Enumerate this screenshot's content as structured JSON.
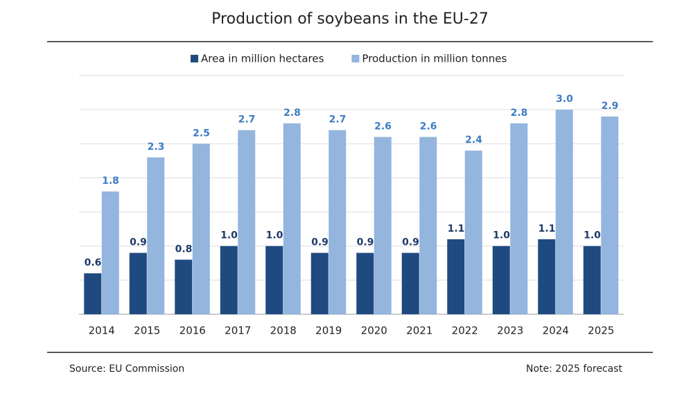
{
  "chart_data": {
    "type": "bar",
    "title": "Production of soybeans in the EU-27",
    "categories": [
      "2014",
      "2015",
      "2016",
      "2017",
      "2018",
      "2019",
      "2020",
      "2021",
      "2022",
      "2023",
      "2024",
      "2025"
    ],
    "series": [
      {
        "name": "Area in million hectares",
        "color": "#1f4a80",
        "label_color": "#1f3a68",
        "values": [
          0.6,
          0.9,
          0.8,
          1.0,
          1.0,
          0.9,
          0.9,
          0.9,
          1.1,
          1.0,
          1.1,
          1.0
        ],
        "value_labels": [
          "0.6",
          "0.9",
          "0.8",
          "1.0",
          "1.0",
          "0.9",
          "0.9",
          "0.9",
          "1.1",
          "1.0",
          "1.1",
          "1.0"
        ]
      },
      {
        "name": "Production in million tonnes",
        "color": "#93b5de",
        "label_color": "#3d7cc4",
        "values": [
          1.8,
          2.3,
          2.5,
          2.7,
          2.8,
          2.7,
          2.6,
          2.6,
          2.4,
          2.8,
          3.0,
          2.9
        ],
        "value_labels": [
          "1.8",
          "2.3",
          "2.5",
          "2.7",
          "2.8",
          "2.7",
          "2.6",
          "2.6",
          "2.4",
          "2.8",
          "3.0",
          "2.9"
        ]
      }
    ],
    "ylim": [
      0,
      3.5
    ],
    "yticks": [
      0,
      0.5,
      1,
      1.5,
      2,
      2.5,
      3,
      3.5
    ],
    "ytick_labels": false,
    "grid": true,
    "source": "Source:  EU Commission",
    "note": "Note: 2025 forecast"
  }
}
